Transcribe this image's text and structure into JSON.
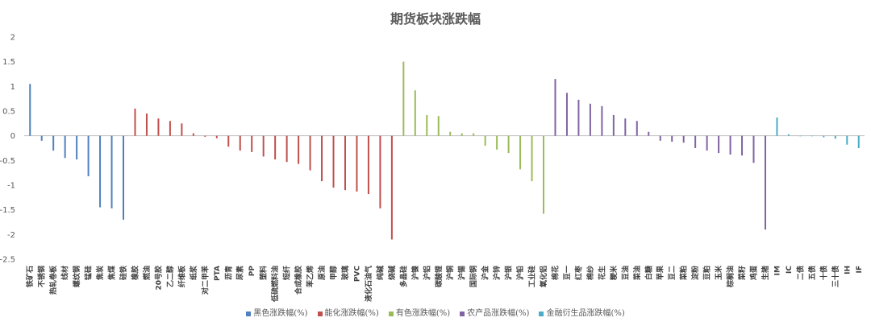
{
  "chart_data": {
    "type": "bar",
    "title": "期货板块涨跌幅",
    "xlabel": "",
    "ylabel": "",
    "ylim": [
      -2.5,
      2
    ],
    "yticks": [
      2,
      1.5,
      1,
      0.5,
      0,
      -0.5,
      -1,
      -1.5,
      -2,
      -2.5
    ],
    "ytick_labels": [
      "2",
      "1.5",
      "1",
      "0.5",
      "0",
      "-0.5",
      "-1",
      "-1.5",
      "-2",
      "-2.5"
    ],
    "grid": false,
    "legend_position": "bottom",
    "categories": [
      "铁矿石",
      "不锈钢",
      "热轧卷板",
      "线材",
      "螺纹钢",
      "锰硅",
      "焦炭",
      "焦煤",
      "硅铁",
      "橡胶",
      "燃油",
      "20号胶",
      "乙二醇",
      "纤维板",
      "纸浆",
      "对二甲苯",
      "PTA",
      "沥青",
      "尿素",
      "PP",
      "塑料",
      "低硫燃料油",
      "短纤",
      "合成橡胶",
      "苯乙烯",
      "原油",
      "甲醇",
      "玻璃",
      "PVC",
      "液化石油气",
      "纯碱",
      "烧碱",
      "多晶硅",
      "沪镍",
      "沪铝",
      "碳酸锂",
      "沪铜",
      "沪锡",
      "国际铜",
      "沪金",
      "沪锌",
      "沪银",
      "沪铅",
      "工业硅",
      "氧化铝",
      "棉花",
      "豆一",
      "红枣",
      "棉纱",
      "花生",
      "粳米",
      "豆油",
      "菜油",
      "白糖",
      "苹果",
      "豆二",
      "菜粕",
      "淀粉",
      "豆粕",
      "玉米",
      "棕榈油",
      "菜籽",
      "鸡蛋",
      "生猪",
      "IM",
      "IC",
      "二债",
      "五债",
      "十债",
      "三十债",
      "IH",
      "IF"
    ],
    "series": [
      {
        "name": "黑色涨跌幅(%)",
        "color": "#4f81bd",
        "values": [
          1.05,
          -0.1,
          -0.3,
          -0.45,
          -0.48,
          -0.82,
          -1.45,
          -1.47,
          -1.7,
          null,
          null,
          null,
          null,
          null,
          null,
          null,
          null,
          null,
          null,
          null,
          null,
          null,
          null,
          null,
          null,
          null,
          null,
          null,
          null,
          null,
          null,
          null,
          null,
          null,
          null,
          null,
          null,
          null,
          null,
          null,
          null,
          null,
          null,
          null,
          null,
          null,
          null,
          null,
          null,
          null,
          null,
          null,
          null,
          null,
          null,
          null,
          null,
          null,
          null,
          null,
          null,
          null,
          null,
          null,
          null,
          null,
          null,
          null,
          null,
          null,
          null,
          null
        ]
      },
      {
        "name": "能化涨跌幅(%)",
        "color": "#c0504d",
        "values": [
          null,
          null,
          null,
          null,
          null,
          null,
          null,
          null,
          null,
          0.55,
          0.45,
          0.35,
          0.3,
          0.25,
          0.05,
          -0.02,
          -0.05,
          -0.22,
          -0.3,
          -0.33,
          -0.42,
          -0.48,
          -0.53,
          -0.57,
          -0.7,
          -0.92,
          -1.05,
          -1.1,
          -1.13,
          -1.18,
          -1.47,
          -2.1,
          null,
          null,
          null,
          null,
          null,
          null,
          null,
          null,
          null,
          null,
          null,
          null,
          null,
          null,
          null,
          null,
          null,
          null,
          null,
          null,
          null,
          null,
          null,
          null,
          null,
          null,
          null,
          null,
          null,
          null,
          null,
          null,
          null,
          null,
          null,
          null,
          null,
          null,
          null,
          null
        ]
      },
      {
        "name": "有色涨跌幅(%)",
        "color": "#9bbb59",
        "values": [
          null,
          null,
          null,
          null,
          null,
          null,
          null,
          null,
          null,
          null,
          null,
          null,
          null,
          null,
          null,
          null,
          null,
          null,
          null,
          null,
          null,
          null,
          null,
          null,
          null,
          null,
          null,
          null,
          null,
          null,
          null,
          null,
          1.5,
          0.92,
          0.42,
          0.4,
          0.08,
          0.05,
          0.05,
          -0.2,
          -0.28,
          -0.35,
          -0.68,
          -0.92,
          -1.58,
          null,
          null,
          null,
          null,
          null,
          null,
          null,
          null,
          null,
          null,
          null,
          null,
          null,
          null,
          null,
          null,
          null,
          null,
          null,
          null,
          null,
          null,
          null,
          null,
          null,
          null,
          null
        ]
      },
      {
        "name": "农产品涨跌幅(%)",
        "color": "#8064a2",
        "values": [
          null,
          null,
          null,
          null,
          null,
          null,
          null,
          null,
          null,
          null,
          null,
          null,
          null,
          null,
          null,
          null,
          null,
          null,
          null,
          null,
          null,
          null,
          null,
          null,
          null,
          null,
          null,
          null,
          null,
          null,
          null,
          null,
          null,
          null,
          null,
          null,
          null,
          null,
          null,
          null,
          null,
          null,
          null,
          null,
          null,
          1.15,
          0.87,
          0.73,
          0.65,
          0.6,
          0.42,
          0.35,
          0.3,
          0.08,
          -0.1,
          -0.12,
          -0.14,
          -0.25,
          -0.3,
          -0.35,
          -0.38,
          -0.4,
          -0.55,
          -1.9,
          null,
          null,
          null,
          null,
          null,
          null,
          null,
          null
        ]
      },
      {
        "name": "金融衍生品涨跌幅(%)",
        "color": "#4bacc6",
        "values": [
          null,
          null,
          null,
          null,
          null,
          null,
          null,
          null,
          null,
          null,
          null,
          null,
          null,
          null,
          null,
          null,
          null,
          null,
          null,
          null,
          null,
          null,
          null,
          null,
          null,
          null,
          null,
          null,
          null,
          null,
          null,
          null,
          null,
          null,
          null,
          null,
          null,
          null,
          null,
          null,
          null,
          null,
          null,
          null,
          null,
          null,
          null,
          null,
          null,
          null,
          null,
          null,
          null,
          null,
          null,
          null,
          null,
          null,
          null,
          null,
          null,
          null,
          null,
          null,
          0.37,
          0.03,
          0.0,
          -0.01,
          -0.03,
          -0.06,
          -0.18,
          -0.25
        ]
      }
    ]
  }
}
